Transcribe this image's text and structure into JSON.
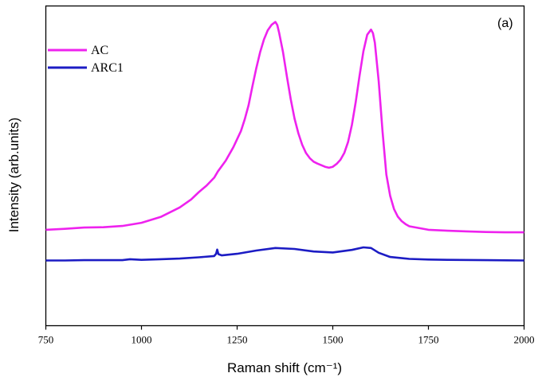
{
  "chart_data": {
    "type": "line",
    "panel_label": "(a)",
    "xlabel": "Raman shift (cm⁻¹)",
    "ylabel": "Intensity (arb.units)",
    "xlim": [
      750,
      2000
    ],
    "ylim": [
      0,
      100
    ],
    "x_ticks": [
      750,
      1000,
      1250,
      1500,
      1750,
      2000
    ],
    "y_ticks_shown": false,
    "legend": {
      "position": "top-left",
      "entries": [
        "AC",
        "ARC1"
      ]
    },
    "series": [
      {
        "name": "AC",
        "color": "#ee22ee",
        "x": [
          750,
          800,
          850,
          900,
          950,
          1000,
          1050,
          1100,
          1130,
          1150,
          1170,
          1190,
          1200,
          1220,
          1240,
          1260,
          1270,
          1280,
          1290,
          1300,
          1310,
          1320,
          1330,
          1340,
          1350,
          1355,
          1360,
          1370,
          1380,
          1390,
          1400,
          1410,
          1420,
          1430,
          1440,
          1450,
          1460,
          1470,
          1480,
          1490,
          1500,
          1510,
          1520,
          1530,
          1540,
          1550,
          1560,
          1570,
          1580,
          1590,
          1600,
          1605,
          1610,
          1620,
          1630,
          1640,
          1650,
          1660,
          1670,
          1680,
          1690,
          1700,
          1750,
          1800,
          1850,
          1900,
          1950,
          2000
        ],
        "values": [
          30.0,
          30.3,
          30.7,
          30.8,
          31.2,
          32.2,
          34.0,
          37.0,
          39.5,
          41.8,
          43.8,
          46.3,
          48.3,
          51.6,
          55.8,
          60.9,
          64.6,
          69.0,
          74.9,
          80.5,
          85.5,
          89.5,
          92.4,
          94.1,
          95.0,
          94.0,
          91.5,
          85.5,
          78.0,
          70.9,
          64.8,
          60.2,
          56.6,
          54.0,
          52.4,
          51.3,
          50.7,
          50.2,
          49.7,
          49.4,
          49.7,
          50.6,
          51.9,
          54.0,
          57.5,
          62.8,
          70.0,
          78.2,
          85.8,
          91.0,
          92.6,
          91.5,
          88.5,
          76.5,
          60.8,
          47.3,
          40.6,
          36.5,
          34.1,
          32.7,
          31.8,
          31.1,
          30.0,
          29.7,
          29.5,
          29.3,
          29.2,
          29.2
        ]
      },
      {
        "name": "ARC1",
        "color": "#1c1cc4",
        "x": [
          750,
          800,
          850,
          900,
          950,
          970,
          1000,
          1050,
          1100,
          1150,
          1190,
          1195,
          1198,
          1201,
          1210,
          1250,
          1300,
          1350,
          1400,
          1450,
          1500,
          1550,
          1580,
          1600,
          1620,
          1650,
          1700,
          1750,
          1800,
          1900,
          2000
        ],
        "values": [
          20.4,
          20.4,
          20.5,
          20.5,
          20.5,
          20.8,
          20.6,
          20.8,
          21.0,
          21.4,
          21.8,
          22.5,
          23.8,
          22.4,
          22.0,
          22.5,
          23.5,
          24.3,
          24.0,
          23.2,
          22.9,
          23.7,
          24.5,
          24.3,
          22.8,
          21.5,
          20.9,
          20.7,
          20.6,
          20.5,
          20.4
        ]
      }
    ]
  }
}
